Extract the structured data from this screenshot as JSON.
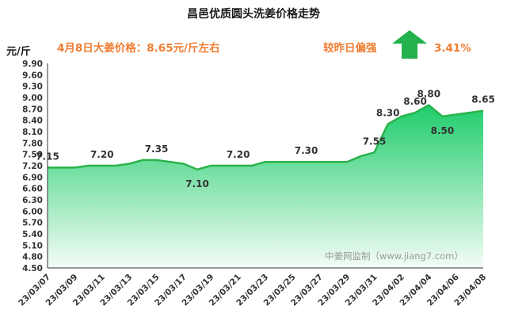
{
  "header": {
    "price_note": "4月8日大姜价格：8.65元/斤左右",
    "change_label": "较昨日偏强",
    "change_value": "3.41%",
    "arrow_color": "#22b14c",
    "arrow_icon": "up-arrow-icon"
  },
  "watermark": "中姜网监制（www.jiang7.com）",
  "chart_data": {
    "type": "area",
    "title": "昌邑优质圆头洗姜价格走势",
    "ylabel": "元/斤",
    "xlabel": "",
    "ylim": [
      4.5,
      9.9
    ],
    "ytick_step": 0.3,
    "grid": false,
    "legend": "none",
    "line_color": "#2bb24c",
    "fill_top_color": "#1fcd6b",
    "fill_bottom_color": "#f4fcf6",
    "x_ticks": [
      "23/03/07",
      "23/03/09",
      "23/03/11",
      "23/03/13",
      "23/03/15",
      "23/03/17",
      "23/03/19",
      "23/03/21",
      "23/03/23",
      "23/03/25",
      "23/03/27",
      "23/03/29",
      "23/03/31",
      "23/04/02",
      "23/04/04",
      "23/04/06",
      "23/04/08"
    ],
    "points": [
      {
        "x": "23/03/07",
        "y": 7.15,
        "label": "7.15"
      },
      {
        "x": "23/03/08",
        "y": 7.15
      },
      {
        "x": "23/03/09",
        "y": 7.15
      },
      {
        "x": "23/03/10",
        "y": 7.2
      },
      {
        "x": "23/03/11",
        "y": 7.2,
        "label": "7.20"
      },
      {
        "x": "23/03/12",
        "y": 7.2
      },
      {
        "x": "23/03/13",
        "y": 7.25
      },
      {
        "x": "23/03/14",
        "y": 7.35
      },
      {
        "x": "23/03/15",
        "y": 7.35,
        "label": "7.35"
      },
      {
        "x": "23/03/16",
        "y": 7.3
      },
      {
        "x": "23/03/17",
        "y": 7.25
      },
      {
        "x": "23/03/18",
        "y": 7.1,
        "label": "7.10"
      },
      {
        "x": "23/03/19",
        "y": 7.2
      },
      {
        "x": "23/03/20",
        "y": 7.2
      },
      {
        "x": "23/03/21",
        "y": 7.2,
        "label": "7.20"
      },
      {
        "x": "23/03/22",
        "y": 7.2
      },
      {
        "x": "23/03/23",
        "y": 7.3
      },
      {
        "x": "23/03/24",
        "y": 7.3
      },
      {
        "x": "23/03/25",
        "y": 7.3
      },
      {
        "x": "23/03/26",
        "y": 7.3,
        "label": "7.30"
      },
      {
        "x": "23/03/27",
        "y": 7.3
      },
      {
        "x": "23/03/28",
        "y": 7.3
      },
      {
        "x": "23/03/29",
        "y": 7.3
      },
      {
        "x": "23/03/30",
        "y": 7.45
      },
      {
        "x": "23/03/31",
        "y": 7.55,
        "label": "7.55"
      },
      {
        "x": "23/04/01",
        "y": 8.3,
        "label": "8.30"
      },
      {
        "x": "23/04/02",
        "y": 8.5
      },
      {
        "x": "23/04/03",
        "y": 8.6,
        "label": "8.60"
      },
      {
        "x": "23/04/04",
        "y": 8.8,
        "label": "8.80"
      },
      {
        "x": "23/04/05",
        "y": 8.5,
        "label": "8.50"
      },
      {
        "x": "23/04/08",
        "y": 8.65,
        "label": "8.65"
      }
    ]
  }
}
